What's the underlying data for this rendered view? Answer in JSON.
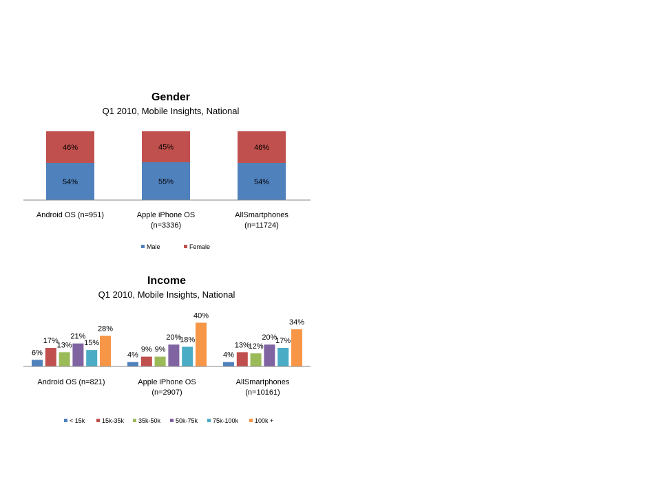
{
  "colors": {
    "male": "#4f81bd",
    "female": "#c0504d",
    "lt15k": "#4f81bd",
    "k15_35": "#c0504d",
    "k35_50": "#9bbb59",
    "k50_75": "#8064a2",
    "k75_100": "#4bacc6",
    "k100plus": "#f79646",
    "axis": "#868686"
  },
  "chart_data": [
    {
      "type": "bar",
      "stacked": true,
      "title": "Gender",
      "subtitle": "Q1 2010, Mobile Insights, National",
      "categories": [
        [
          "Android OS (n=951)"
        ],
        [
          "Apple iPhone OS",
          "(n=3336)"
        ],
        [
          "AllSmartphones",
          "(n=11724)"
        ]
      ],
      "series": [
        {
          "name": "Male",
          "values": [
            54,
            55,
            54
          ],
          "labels": [
            "54%",
            "55%",
            "54%"
          ],
          "color_key": "male"
        },
        {
          "name": "Female",
          "values": [
            46,
            45,
            46
          ],
          "labels": [
            "46%",
            "45%",
            "46%"
          ],
          "color_key": "female"
        }
      ],
      "ylim": [
        0,
        100
      ],
      "grid": false,
      "legend": "bottom"
    },
    {
      "type": "bar",
      "stacked": false,
      "title": "Income",
      "subtitle": "Q1 2010, Mobile Insights, National",
      "categories": [
        [
          "Android OS (n=821)"
        ],
        [
          "Apple iPhone OS",
          "(n=2907)"
        ],
        [
          "AllSmartphones",
          "(n=10161)"
        ]
      ],
      "series": [
        {
          "name": "< 15k",
          "values": [
            6,
            4,
            4
          ],
          "labels": [
            "6%",
            "4%",
            "4%"
          ],
          "color_key": "lt15k"
        },
        {
          "name": "15k-35k",
          "values": [
            17,
            9,
            13
          ],
          "labels": [
            "17%",
            "9%",
            "13%"
          ],
          "color_key": "k15_35"
        },
        {
          "name": "35k-50k",
          "values": [
            13,
            9,
            12
          ],
          "labels": [
            "13%",
            "9%",
            "12%"
          ],
          "color_key": "k35_50"
        },
        {
          "name": "50k-75k",
          "values": [
            21,
            20,
            20
          ],
          "labels": [
            "21%",
            "20%",
            "20%"
          ],
          "color_key": "k50_75"
        },
        {
          "name": "75k-100k",
          "values": [
            15,
            18,
            17
          ],
          "labels": [
            "15%",
            "18%",
            "17%"
          ],
          "color_key": "k75_100"
        },
        {
          "name": "100k +",
          "values": [
            28,
            40,
            34
          ],
          "labels": [
            "28%",
            "40%",
            "34%"
          ],
          "color_key": "k100plus"
        }
      ],
      "ylim": [
        0,
        40
      ],
      "grid": false,
      "legend": "bottom"
    }
  ]
}
